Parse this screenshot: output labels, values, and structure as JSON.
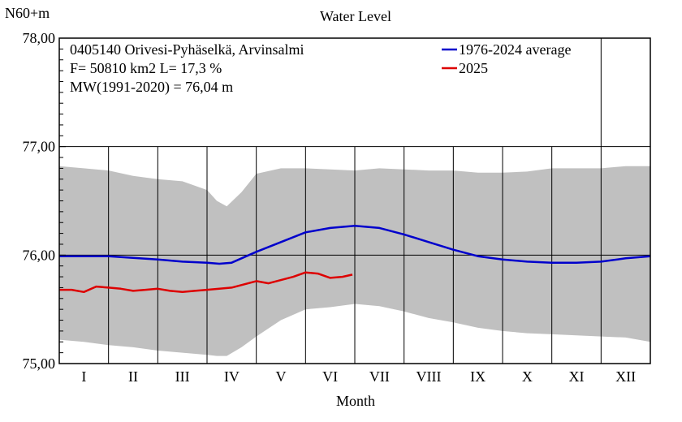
{
  "chart_data": {
    "type": "area",
    "title": "Water Level",
    "ylabel": "N60+m",
    "xlabel": "Month",
    "ylim": [
      75.0,
      78.0
    ],
    "yticks": [
      {
        "value": 75.0,
        "label": "75,00"
      },
      {
        "value": 76.0,
        "label": "76,00"
      },
      {
        "value": 77.0,
        "label": "77,00"
      },
      {
        "value": 78.0,
        "label": "78,00"
      }
    ],
    "months": [
      "I",
      "II",
      "III",
      "IV",
      "V",
      "VI",
      "VII",
      "VIII",
      "IX",
      "X",
      "XI",
      "XII"
    ],
    "info_lines": [
      "0405140 Orivesi-Pyhäselkä, Arvinsalmi",
      "F=  50810 km2 L=  17,3 %",
      "MW(1991-2020) = 76,04 m"
    ],
    "range_band": {
      "x_month": [
        0,
        0.5,
        1,
        1.5,
        2,
        2.5,
        3,
        3.2,
        3.4,
        3.7,
        4,
        4.5,
        5,
        5.5,
        6,
        6.5,
        7,
        7.5,
        8,
        8.5,
        9,
        9.5,
        10,
        10.5,
        11,
        11.5,
        12
      ],
      "max": [
        76.82,
        76.8,
        76.78,
        76.73,
        76.7,
        76.68,
        76.6,
        76.5,
        76.45,
        76.58,
        76.75,
        76.8,
        76.8,
        76.79,
        76.78,
        76.8,
        76.79,
        76.78,
        76.78,
        76.76,
        76.76,
        76.77,
        76.8,
        76.8,
        76.8,
        76.82,
        76.82
      ],
      "min": [
        75.22,
        75.2,
        75.17,
        75.15,
        75.12,
        75.1,
        75.08,
        75.07,
        75.07,
        75.15,
        75.25,
        75.4,
        75.5,
        75.52,
        75.55,
        75.53,
        75.48,
        75.42,
        75.38,
        75.33,
        75.3,
        75.28,
        75.27,
        75.26,
        75.25,
        75.24,
        75.2
      ]
    },
    "series": [
      {
        "name": "1976-2024 average",
        "color": "#0000cc",
        "x_month": [
          0,
          1,
          2,
          2.5,
          3,
          3.25,
          3.5,
          4,
          4.5,
          5,
          5.5,
          6,
          6.5,
          7,
          7.5,
          8,
          8.5,
          9,
          9.5,
          10,
          10.5,
          11,
          11.5,
          12
        ],
        "values": [
          75.99,
          75.99,
          75.96,
          75.94,
          75.93,
          75.92,
          75.93,
          76.03,
          76.12,
          76.21,
          76.25,
          76.27,
          76.25,
          76.19,
          76.12,
          76.05,
          75.99,
          75.96,
          75.94,
          75.93,
          75.93,
          75.94,
          75.97,
          75.99
        ]
      },
      {
        "name": "2025",
        "color": "#dd0000",
        "x_month": [
          0,
          0.25,
          0.5,
          0.75,
          1,
          1.25,
          1.5,
          1.75,
          2,
          2.25,
          2.5,
          2.75,
          3,
          3.25,
          3.5,
          3.75,
          4,
          4.25,
          4.5,
          4.75,
          5,
          5.25,
          5.5,
          5.75,
          5.95
        ],
        "values": [
          75.68,
          75.68,
          75.66,
          75.71,
          75.7,
          75.69,
          75.67,
          75.68,
          75.69,
          75.67,
          75.66,
          75.67,
          75.68,
          75.69,
          75.7,
          75.73,
          75.76,
          75.74,
          75.77,
          75.8,
          75.84,
          75.83,
          75.79,
          75.8,
          75.82
        ]
      }
    ],
    "legend_position": "top-right"
  }
}
